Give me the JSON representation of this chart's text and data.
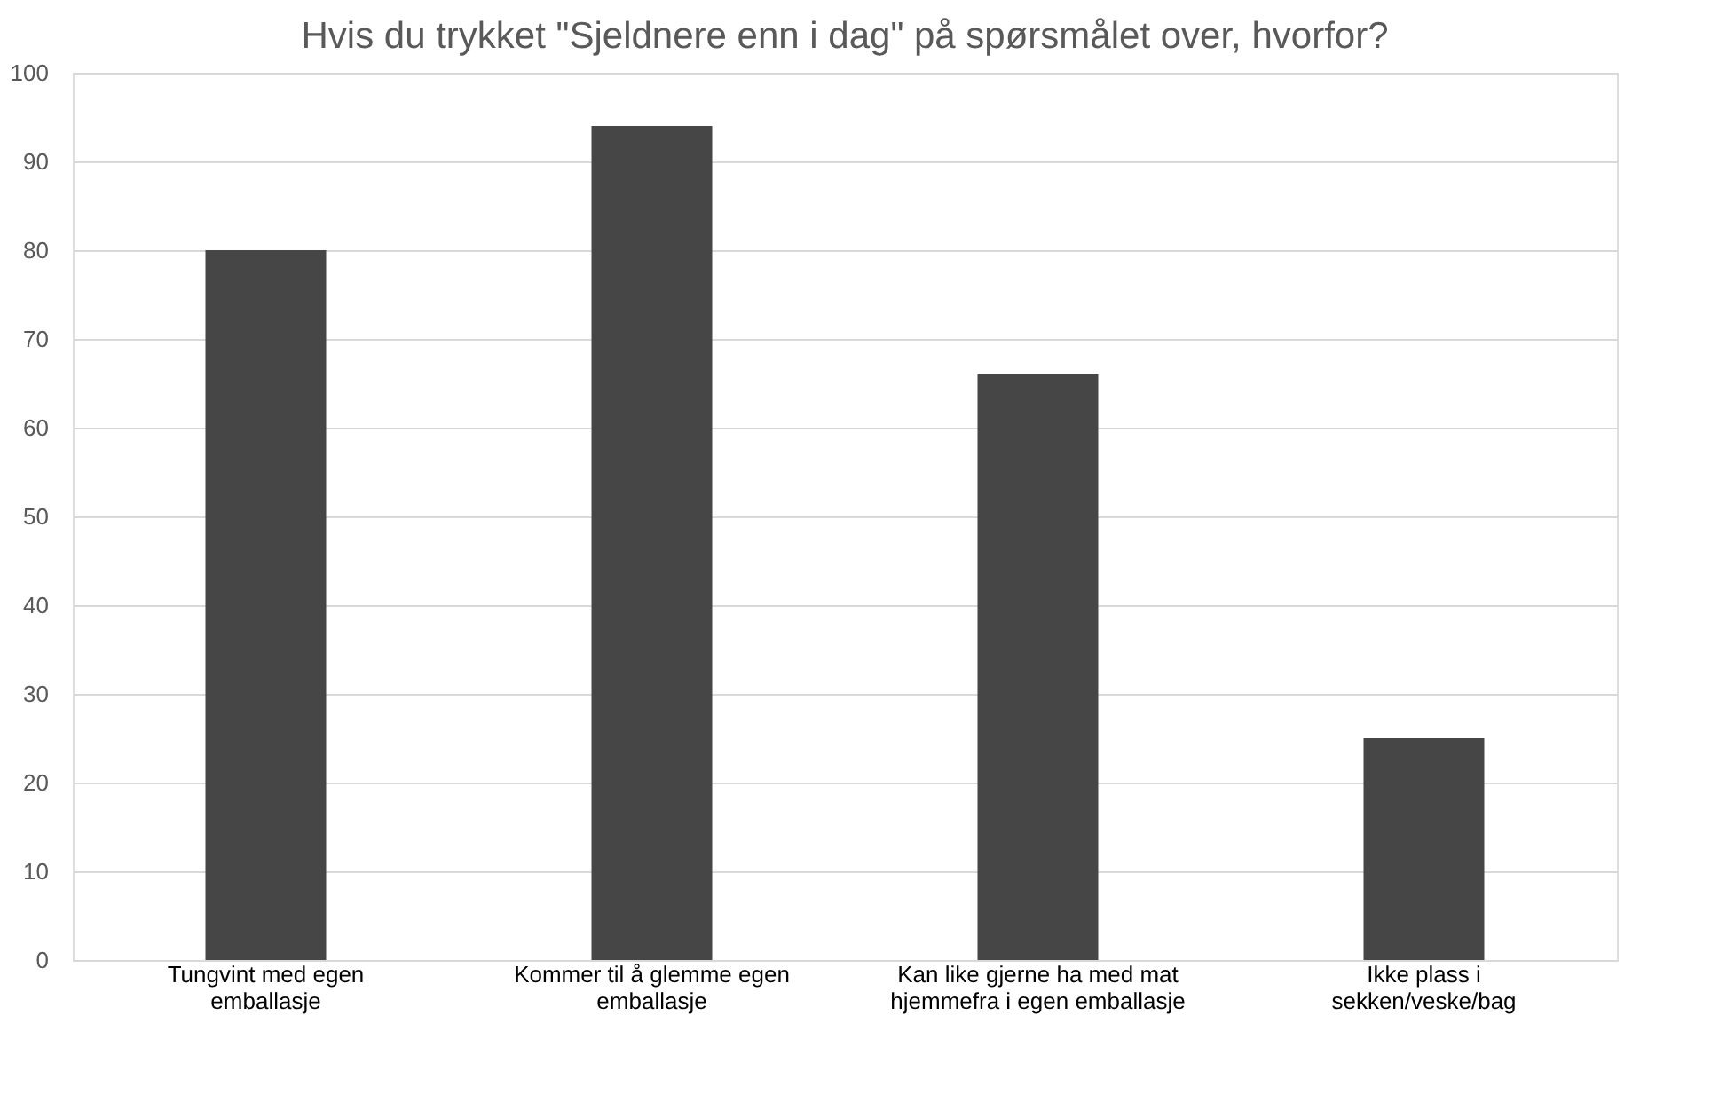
{
  "chart_data": {
    "type": "bar",
    "title": "Hvis du trykket \"Sjeldnere enn i dag\" på spørsmålet over, hvorfor?",
    "categories": [
      "Tungvint med egen emballasje",
      "Kommer til å glemme egen emballasje",
      "Kan like gjerne ha med mat hjemmefra i egen emballasje",
      "Ikke plass i sekken/veske/bag"
    ],
    "values": [
      80,
      94,
      66,
      25
    ],
    "color": "#464646",
    "ylim": [
      0,
      100
    ],
    "yticks": [
      0,
      10,
      20,
      30,
      40,
      50,
      60,
      70,
      80,
      90,
      100
    ],
    "grid": "y"
  }
}
